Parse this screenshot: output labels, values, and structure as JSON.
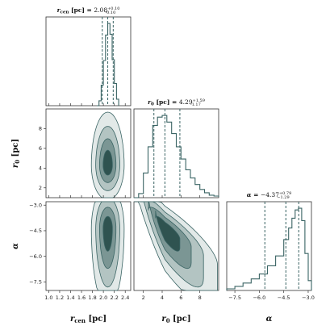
{
  "colors": {
    "line": "#3a6464",
    "fill_levels": [
      "#e2e9e8",
      "#b3c4c2",
      "#7b9694",
      "#2f5350"
    ],
    "frame": "#333333",
    "background": "#ffffff"
  },
  "chart_data": {
    "type": "corner",
    "parameters": [
      {
        "key": "rcen",
        "axis_label": "r_cen [pc]",
        "title": "r_cen [pc] = 2.08 (+0.10 / -0.10)",
        "title_main": "2.08",
        "title_plus": "+0.10",
        "title_minus": "-0.10",
        "range": [
          0.95,
          2.5
        ],
        "ticks": [
          1.0,
          1.2,
          1.4,
          1.6,
          1.8,
          2.0,
          2.2,
          2.4
        ],
        "tick_labels": [
          "1.0",
          "1.2",
          "1.4",
          "1.6",
          "1.8",
          "2.0",
          "2.2",
          "2.4"
        ],
        "quantiles": [
          1.98,
          2.08,
          2.18
        ],
        "hist": {
          "x": [
            1.88,
            1.92,
            1.96,
            2.0,
            2.04,
            2.08,
            2.12,
            2.16,
            2.2,
            2.24,
            2.28
          ],
          "y": [
            0.0,
            0.06,
            0.25,
            0.55,
            0.86,
            1.0,
            0.87,
            0.56,
            0.27,
            0.08,
            0.0
          ]
        }
      },
      {
        "key": "r0",
        "axis_label": "r_0 [pc]",
        "title": "r_0 [pc] = 4.29 (+1.59 / -1.17)",
        "title_main": "4.29",
        "title_plus": "+1.59",
        "title_minus": "-1.17",
        "range": [
          1.0,
          10.0
        ],
        "ticks": [
          2,
          4,
          6,
          8
        ],
        "tick_labels": [
          "2",
          "4",
          "6",
          "8"
        ],
        "quantiles": [
          3.12,
          4.29,
          5.88
        ],
        "hist": {
          "x": [
            1.0,
            1.5,
            2.0,
            2.5,
            3.0,
            3.5,
            4.0,
            4.5,
            5.0,
            5.5,
            6.0,
            6.5,
            7.0,
            7.5,
            8.0,
            8.5,
            9.0,
            9.5,
            10.0
          ],
          "y": [
            0.0,
            0.05,
            0.3,
            0.62,
            0.88,
            0.98,
            1.0,
            0.92,
            0.78,
            0.62,
            0.47,
            0.34,
            0.24,
            0.16,
            0.1,
            0.06,
            0.03,
            0.02,
            0.01
          ]
        }
      },
      {
        "key": "alpha",
        "axis_label": "α",
        "title": "α = −4.37 (+0.79 / −1.29)",
        "title_main": "−4.37",
        "title_plus": "+0.79",
        "title_minus": "−1.29",
        "range": [
          -8.0,
          -2.8
        ],
        "ticks": [
          -7.5,
          -6.0,
          -4.5,
          -3.0
        ],
        "tick_labels": [
          "−7.5",
          "−6.0",
          "−4.5",
          "−3.0"
        ],
        "quantiles": [
          -5.66,
          -4.37,
          -3.58
        ],
        "hist": {
          "x": [
            -8.0,
            -7.5,
            -7.0,
            -6.5,
            -6.0,
            -5.5,
            -5.0,
            -4.5,
            -4.2,
            -4.0,
            -3.8,
            -3.6,
            -3.4,
            -3.2,
            -3.0,
            -2.8
          ],
          "y": [
            0.02,
            0.05,
            0.09,
            0.14,
            0.2,
            0.3,
            0.42,
            0.62,
            0.76,
            0.88,
            0.98,
            1.0,
            0.85,
            0.45,
            0.12,
            0.0
          ]
        }
      }
    ],
    "contour_levels": 4,
    "grid": false
  }
}
